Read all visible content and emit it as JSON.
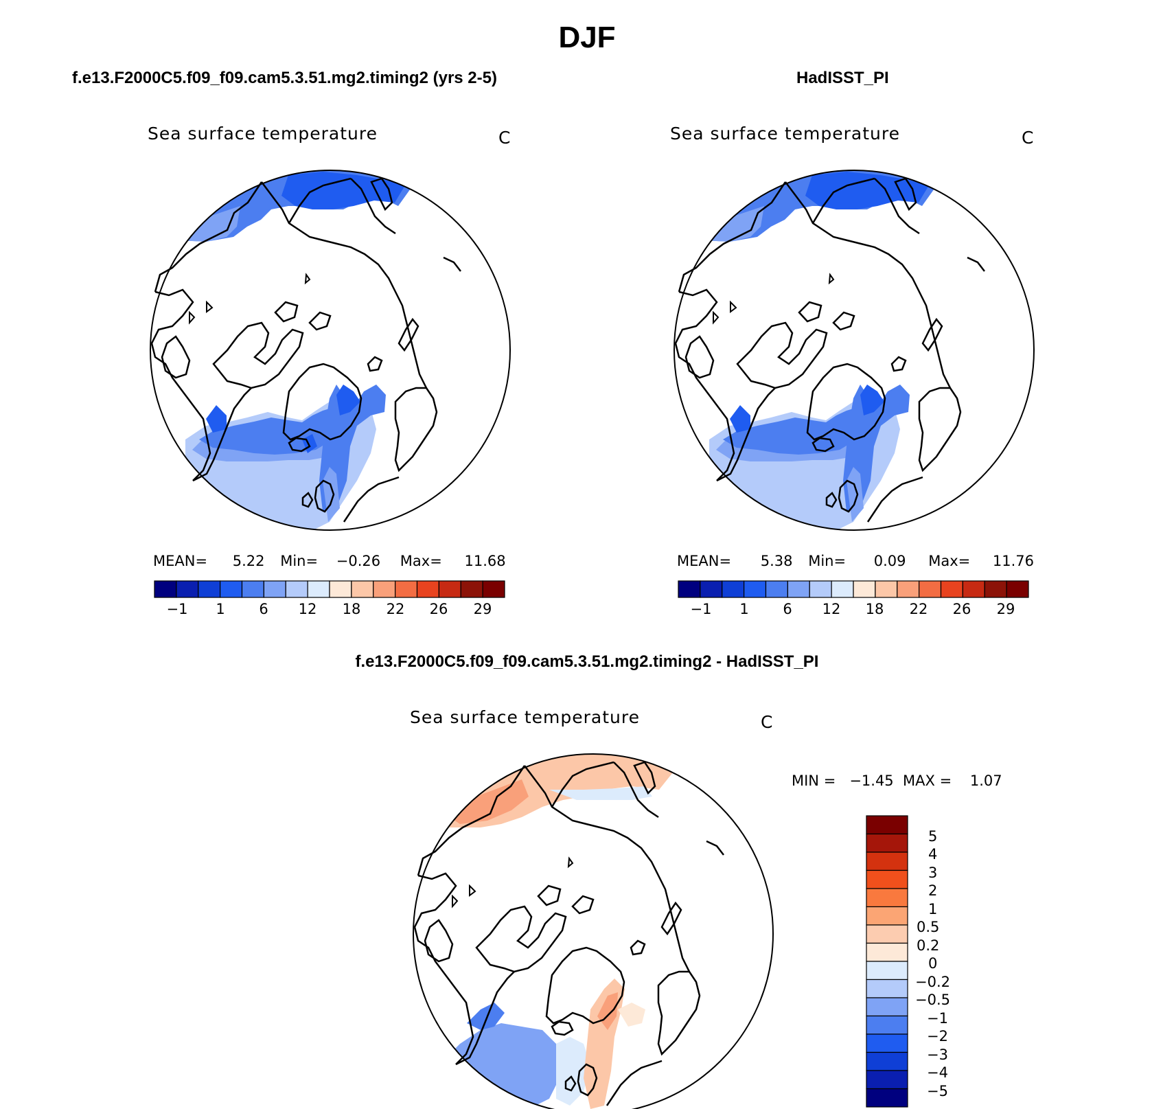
{
  "page_title": "DJF",
  "panels": [
    {
      "heading": "f.e13.F2000C5.f09_f09.cam5.3.51.mg2.timing2 (yrs 2-5)",
      "variable": "Sea surface temperature",
      "units": "C",
      "stats": {
        "mean_label": "MEAN=",
        "mean": "5.22",
        "min_label": "Min=",
        "min": "−0.26",
        "max_label": "Max=",
        "max": "11.68"
      },
      "colorbar_ticks": [
        "−1",
        "1",
        "6",
        "12",
        "18",
        "22",
        "26",
        "29"
      ]
    },
    {
      "heading": "HadISST_PI",
      "variable": "Sea surface temperature",
      "units": "C",
      "stats": {
        "mean_label": "MEAN=",
        "mean": "5.38",
        "min_label": "Min=",
        "min": "0.09",
        "max_label": "Max=",
        "max": "11.76"
      },
      "colorbar_ticks": [
        "−1",
        "1",
        "6",
        "12",
        "18",
        "22",
        "26",
        "29"
      ]
    }
  ],
  "diff_panel": {
    "heading": "f.e13.F2000C5.f09_f09.cam5.3.51.mg2.timing2 - HadISST_PI",
    "variable": "Sea surface temperature",
    "units": "C",
    "minmax_text": "MIN =   −1.45  MAX =    1.07",
    "colorbar_ticks": [
      "5",
      "4",
      "3",
      "2",
      "1",
      "0.5",
      "0.2",
      "0",
      "−0.2",
      "−0.5",
      "−1",
      "−2",
      "−3",
      "−4",
      "−5"
    ]
  },
  "colors": {
    "sst_scale": [
      "#00007f",
      "#0a1fb0",
      "#0f3fd6",
      "#1f5cf0",
      "#4c7ef0",
      "#7fa3f5",
      "#b4cbfa",
      "#dcebfc",
      "#fde9d8",
      "#fcc7a8",
      "#f9a07a",
      "#f36d43",
      "#e8431f",
      "#c72a13",
      "#8c1308",
      "#7a0000"
    ],
    "diff_scale": [
      "#7a0000",
      "#a5160a",
      "#d4320f",
      "#f0501c",
      "#f9793e",
      "#fba574",
      "#fcccb0",
      "#fde9d8",
      "#dcebfc",
      "#b4cbfa",
      "#7fa3f5",
      "#4c7ef0",
      "#1f5cf0",
      "#0f3fd6",
      "#0a1fb0",
      "#00007f"
    ],
    "ocean_cold": "#1f5cf0",
    "ocean_mid": "#4c7ef0",
    "ocean_light": "#7fa3f5",
    "ocean_pale": "#b4cbfa",
    "diff_warm": "#fcc7a8",
    "diff_warm2": "#f9a07a",
    "diff_cool": "#7fa3f5",
    "diff_pale": "#dcebfc"
  }
}
